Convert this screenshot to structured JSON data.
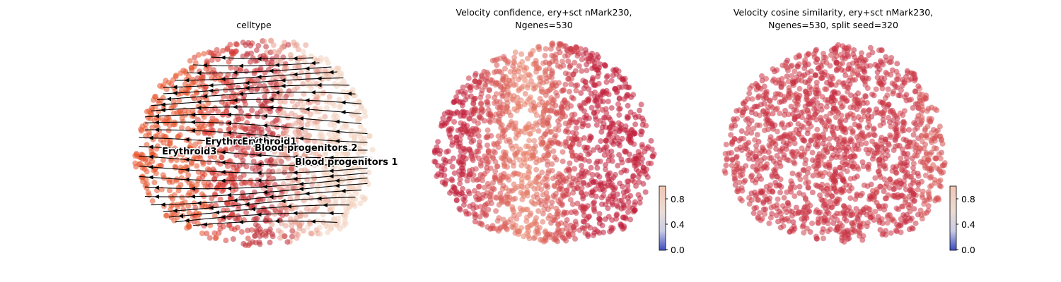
{
  "chart_data": [
    {
      "type": "scatter",
      "title": "celltype",
      "subtype": "embedding with velocity streamlines",
      "clusters": [
        {
          "name": "Erythroid3",
          "color": "#e8552e"
        },
        {
          "name": "Erythroid2",
          "color": "#d63c35"
        },
        {
          "name": "Erythroid1",
          "color": "#c0323a"
        },
        {
          "name": "Blood progenitors 2",
          "color": "#e79f8f"
        },
        {
          "name": "Blood progenitors 1",
          "color": "#f2d2bf"
        }
      ],
      "streamline_direction": "right-to-left",
      "axes": "off"
    },
    {
      "type": "scatter",
      "title": "Velocity confidence, ery+sct nMark230,",
      "title_line2": "Ngenes=530",
      "colormap": [
        "#3b4cc0",
        "#ddddee",
        "#f4c7b1",
        "#e05a47",
        "#b40426"
      ],
      "colorbar": {
        "ticks": [
          "0.0",
          "0.4",
          "0.8"
        ],
        "range": [
          0,
          1
        ]
      },
      "pattern": "lower confidence in the center band, higher on left and right edges",
      "axes": "off"
    },
    {
      "type": "scatter",
      "title": "Velocity cosine similarity, ery+sct nMark230,",
      "title_line2": "Ngenes=530, split seed=320",
      "colormap": [
        "#3b4cc0",
        "#ddddee",
        "#f4c7b1",
        "#e05a47",
        "#b40426"
      ],
      "colorbar": {
        "ticks": [
          "0.0",
          "0.4",
          "0.8"
        ],
        "range": [
          0,
          1
        ]
      },
      "pattern": "uniformly high similarity with slightly lighter right edge",
      "axes": "off"
    }
  ]
}
